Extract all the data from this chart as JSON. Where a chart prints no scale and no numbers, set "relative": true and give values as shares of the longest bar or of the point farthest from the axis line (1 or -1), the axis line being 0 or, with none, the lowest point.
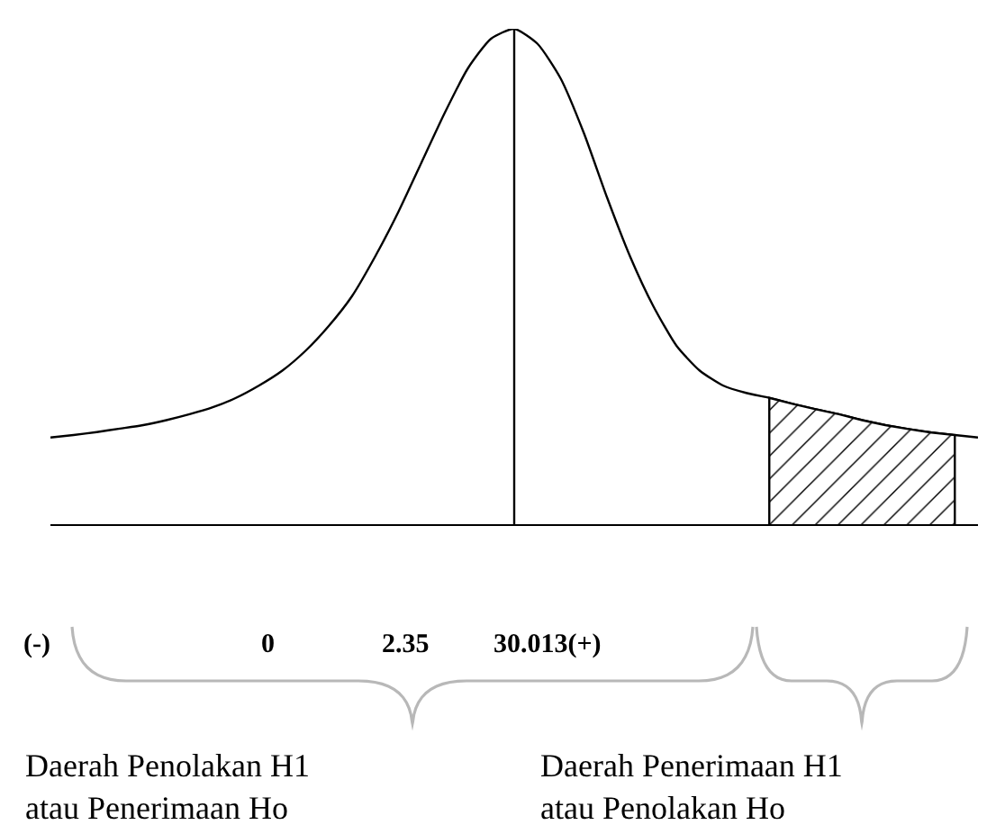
{
  "chart_data": {
    "type": "line",
    "relative": true,
    "marker": "none",
    "line_style": "solid",
    "categories": [
      null,
      null,
      null,
      null,
      null,
      null,
      null,
      null,
      null,
      null,
      null,
      null,
      null,
      null,
      null,
      null,
      null,
      null,
      null,
      null,
      null,
      null,
      null,
      null,
      null,
      null,
      null,
      null,
      null,
      null,
      null,
      null,
      null,
      null,
      null,
      null,
      null,
      null,
      null,
      null,
      null
    ],
    "series": [
      {
        "color": "#000000",
        "values": [
          0.175,
          0.18,
          0.186,
          0.193,
          0.2,
          0.21,
          0.222,
          0.236,
          0.255,
          0.28,
          0.31,
          0.35,
          0.4,
          0.46,
          0.54,
          0.63,
          0.73,
          0.83,
          0.92,
          0.98,
          1,
          0.97,
          0.9,
          0.79,
          0.66,
          0.54,
          0.44,
          0.36,
          0.31,
          0.28,
          0.265,
          0.255,
          0.243,
          0.232,
          0.222,
          0.21,
          0.2,
          0.192,
          0.185,
          0.18,
          0.175
        ]
      },
      {
        "type": "area",
        "color": "#000000",
        "values": [
          null,
          null,
          null,
          null,
          null,
          null,
          null,
          null,
          null,
          null,
          null,
          null,
          null,
          null,
          null,
          null,
          null,
          null,
          null,
          null,
          null,
          null,
          null,
          null,
          null,
          null,
          null,
          null,
          null,
          null,
          null,
          0.255,
          0.243,
          0.232,
          0.222,
          0.21,
          0.2,
          0.192,
          0.185,
          0.18,
          null
        ]
      }
    ],
    "annotations": [
      "(-)",
      "0",
      "2.35",
      "30.013(+)",
      "Daerah Penolakan H1\natau Penerimaan Ho",
      "Daerah Penerimaan H1\natau Penolakan Ho"
    ]
  }
}
